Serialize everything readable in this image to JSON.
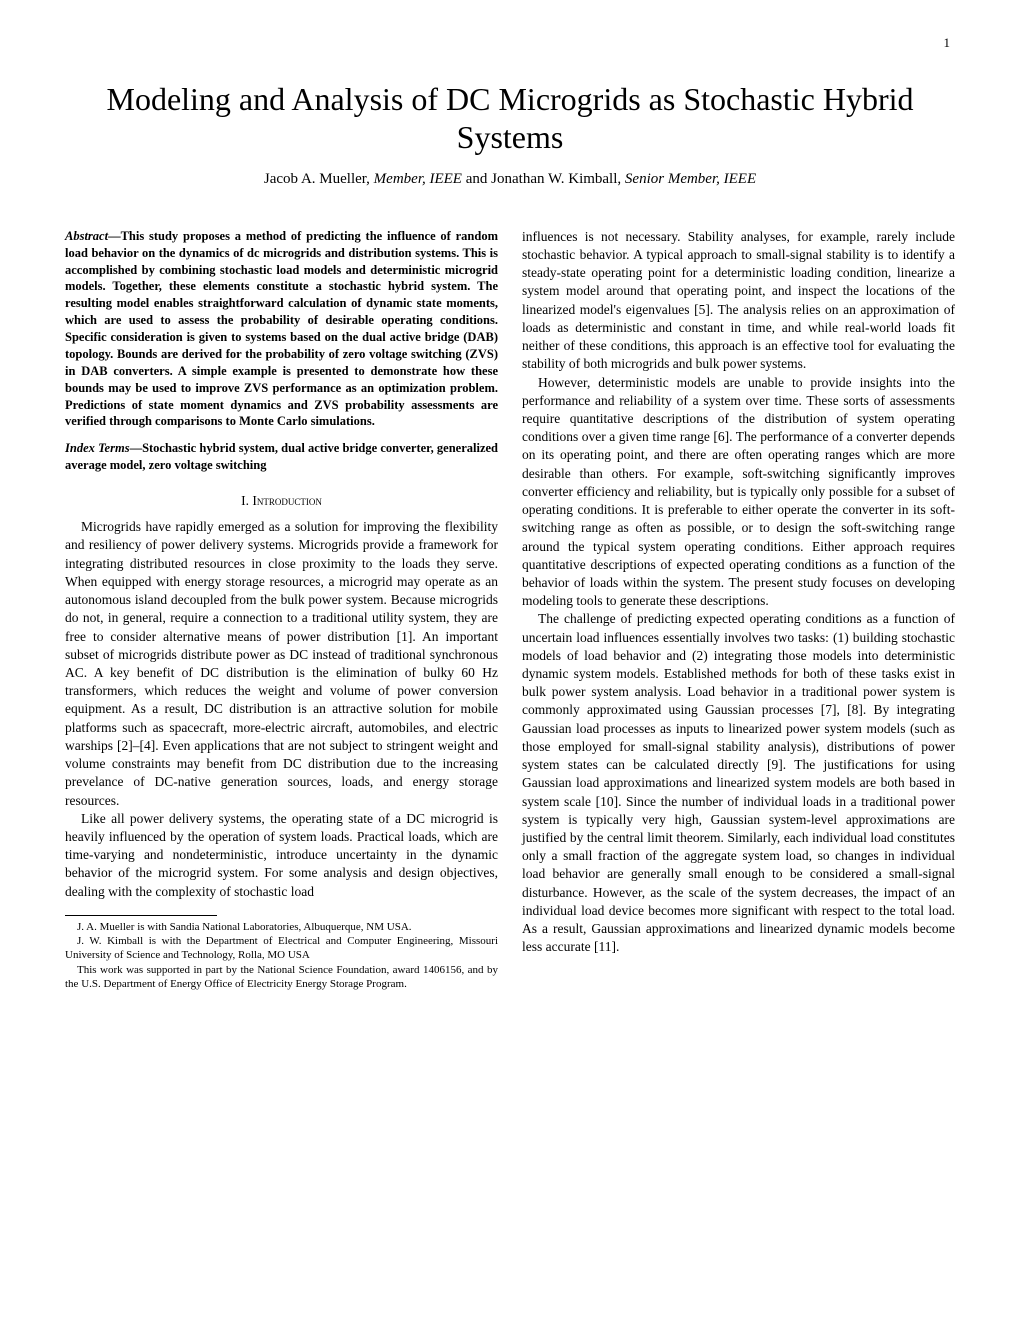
{
  "page_number": "1",
  "title": "Modeling and Analysis of DC Microgrids as Stochastic Hybrid Systems",
  "authors_line": {
    "a1_name": "Jacob A. Mueller,",
    "a1_role": " Member, IEEE ",
    "and": "and ",
    "a2_name": "Jonathan W. Kimball,",
    "a2_role": " Senior Member, IEEE"
  },
  "abstract": {
    "label": "Abstract",
    "text": "—This study proposes a method of predicting the influence of random load behavior on the dynamics of dc microgrids and distribution systems. This is accomplished by combining stochastic load models and deterministic microgrid models. Together, these elements constitute a stochastic hybrid system. The resulting model enables straightforward calculation of dynamic state moments, which are used to assess the probability of desirable operating conditions. Specific consideration is given to systems based on the dual active bridge (DAB) topology. Bounds are derived for the probability of zero voltage switching (ZVS) in DAB converters. A simple example is presented to demonstrate how these bounds may be used to improve ZVS performance as an optimization problem. Predictions of state moment dynamics and ZVS probability assessments are verified through comparisons to Monte Carlo simulations."
  },
  "index_terms": {
    "label": "Index Terms",
    "text": "—Stochastic hybrid system, dual active bridge converter, generalized average model, zero voltage switching"
  },
  "section1_header": "I. Introduction",
  "col1_p1": "Microgrids have rapidly emerged as a solution for improving the flexibility and resiliency of power delivery systems. Microgrids provide a framework for integrating distributed resources in close proximity to the loads they serve. When equipped with energy storage resources, a microgrid may operate as an autonomous island decoupled from the bulk power system. Because microgrids do not, in general, require a connection to a traditional utility system, they are free to consider alternative means of power distribution [1]. An important subset of microgrids distribute power as DC instead of traditional synchronous AC. A key benefit of DC distribution is the elimination of bulky 60 Hz transformers, which reduces the weight and volume of power conversion equipment. As a result, DC distribution is an attractive solution for mobile platforms such as spacecraft, more-electric aircraft, automobiles, and electric warships [2]–[4]. Even applications that are not subject to stringent weight and volume constraints may benefit from DC distribution due to the increasing prevelance of DC-native generation sources, loads, and energy storage resources.",
  "col1_p2": "Like all power delivery systems, the operating state of a DC microgrid is heavily influenced by the operation of system loads. Practical loads, which are time-varying and nondeterministic, introduce uncertainty in the dynamic behavior of the microgrid system. For some analysis and design objectives, dealing with the complexity of stochastic load",
  "footnotes": {
    "f1": "J. A. Mueller is with Sandia National Laboratories, Albuquerque, NM USA.",
    "f2": "J. W. Kimball is with the Department of Electrical and Computer Engineering, Missouri University of Science and Technology, Rolla, MO USA",
    "f3": "This work was supported in part by the National Science Foundation, award 1406156, and by the U.S. Department of Energy Office of Electricity Energy Storage Program."
  },
  "col2_p1": "influences is not necessary. Stability analyses, for example, rarely include stochastic behavior. A typical approach to small-signal stability is to identify a steady-state operating point for a deterministic loading condition, linearize a system model around that operating point, and inspect the locations of the linearized model's eigenvalues [5]. The analysis relies on an approximation of loads as deterministic and constant in time, and while real-world loads fit neither of these conditions, this approach is an effective tool for evaluating the stability of both microgrids and bulk power systems.",
  "col2_p2": "However, deterministic models are unable to provide insights into the performance and reliability of a system over time. These sorts of assessments require quantitative descriptions of the distribution of system operating conditions over a given time range [6]. The performance of a converter depends on its operating point, and there are often operating ranges which are more desirable than others. For example, soft-switching significantly improves converter efficiency and reliability, but is typically only possible for a subset of operating conditions. It is preferable to either operate the converter in its soft-switching range as often as possible, or to design the soft-switching range around the typical system operating conditions. Either approach requires quantitative descriptions of expected operating conditions as a function of the behavior of loads within the system. The present study focuses on developing modeling tools to generate these descriptions.",
  "col2_p3": "The challenge of predicting expected operating conditions as a function of uncertain load influences essentially involves two tasks: (1) building stochastic models of load behavior and (2) integrating those models into deterministic dynamic system models. Established methods for both of these tasks exist in bulk power system analysis. Load behavior in a traditional power system is commonly approximated using Gaussian processes [7], [8]. By integrating Gaussian load processes as inputs to linearized power system models (such as those employed for small-signal stability analysis), distributions of power system states can be calculated directly [9]. The justifications for using Gaussian load approximations and linearized system models are both based in system scale [10]. Since the number of individual loads in a traditional power system is typically very high, Gaussian system-level approximations are justified by the central limit theorem. Similarly, each individual load constitutes only a small fraction of the aggregate system load, so changes in individual load behavior are generally small enough to be considered a small-signal disturbance. However, as the scale of the system decreases, the impact of an individual load device becomes more significant with respect to the total load. As a result, Gaussian approximations and linearized dynamic models become less accurate [11]."
}
